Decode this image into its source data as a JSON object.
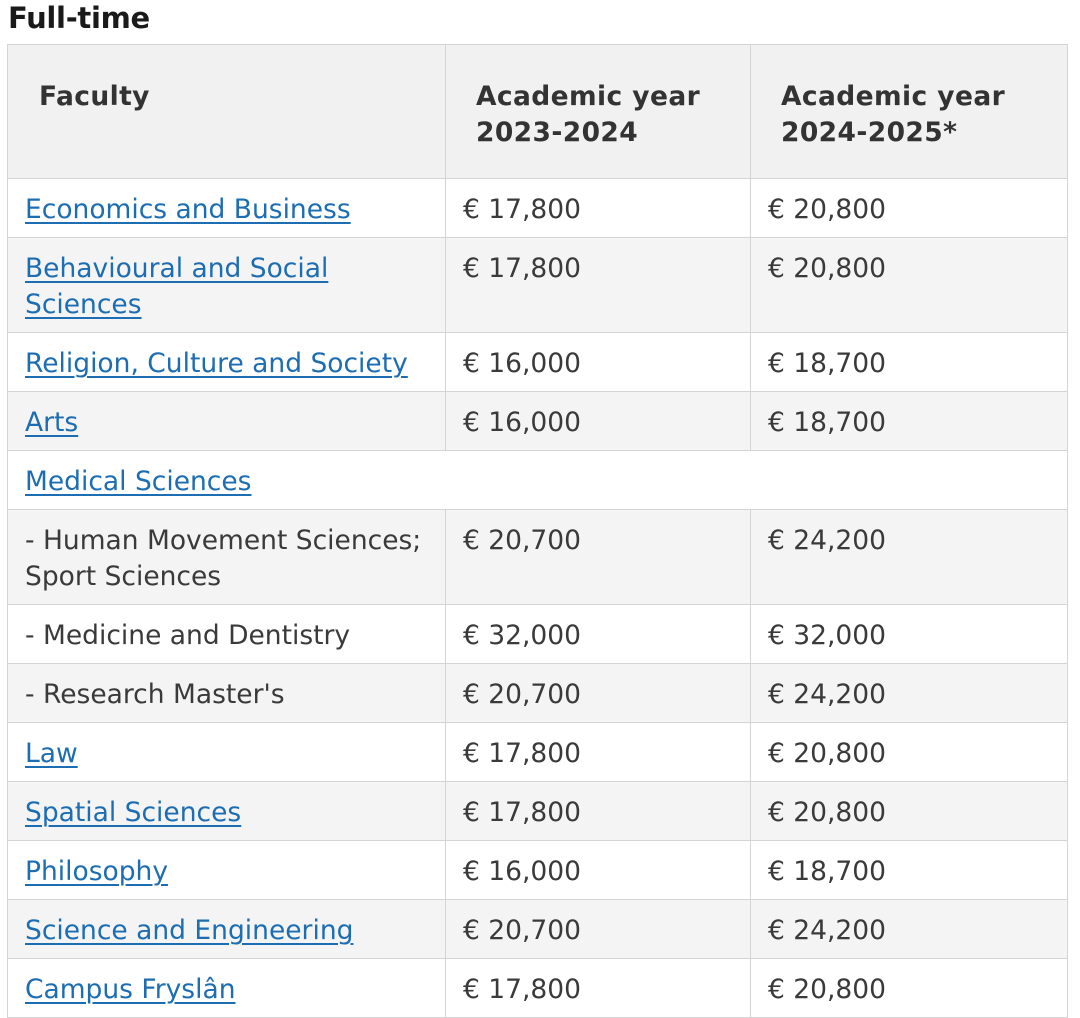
{
  "section": {
    "title": "Full-time"
  },
  "table": {
    "headers": {
      "faculty": "Faculty",
      "year1": "Academic year 2023-2024",
      "year2": "Academic year 2024-2025*"
    },
    "rows": [
      {
        "faculty": "Economics and Business",
        "link": true,
        "fee_2023": "€ 17,800",
        "fee_2024": "€ 20,800"
      },
      {
        "faculty": "Behavioural and Social Sciences",
        "link": true,
        "fee_2023": "€ 17,800",
        "fee_2024": "€ 20,800"
      },
      {
        "faculty": "Religion, Culture and Society",
        "link": true,
        "fee_2023": "€ 16,000",
        "fee_2024": "€ 18,700"
      },
      {
        "faculty": "Arts",
        "link": true,
        "fee_2023": "€ 16,000",
        "fee_2024": "€ 18,700"
      },
      {
        "faculty": "Medical Sciences",
        "link": true,
        "fee_2023": "",
        "fee_2024": "",
        "span": true
      },
      {
        "faculty": "- Human Movement Sciences; Sport Sciences",
        "link": false,
        "fee_2023": "€ 20,700",
        "fee_2024": "€ 24,200"
      },
      {
        "faculty": "- Medicine and Dentistry",
        "link": false,
        "fee_2023": "€ 32,000",
        "fee_2024": "€ 32,000"
      },
      {
        "faculty": "- Research Master's",
        "link": false,
        "fee_2023": "€ 20,700",
        "fee_2024": "€ 24,200"
      },
      {
        "faculty": "Law",
        "link": true,
        "fee_2023": "€ 17,800",
        "fee_2024": "€ 20,800"
      },
      {
        "faculty": "Spatial Sciences",
        "link": true,
        "fee_2023": "€ 17,800",
        "fee_2024": "€ 20,800"
      },
      {
        "faculty": "Philosophy",
        "link": true,
        "fee_2023": "€ 16,000",
        "fee_2024": "€ 18,700"
      },
      {
        "faculty": "Science and Engineering",
        "link": true,
        "fee_2023": "€ 20,700",
        "fee_2024": "€ 24,200"
      },
      {
        "faculty": "Campus Fryslân",
        "link": true,
        "fee_2023": "€ 17,800",
        "fee_2024": "€ 20,800"
      }
    ]
  },
  "colors": {
    "link": "#1d6db3",
    "header_bg": "#f1f1f1",
    "row_alt_bg": "#f4f4f4",
    "border": "#d4d4d4",
    "text": "#3a3a3a"
  }
}
